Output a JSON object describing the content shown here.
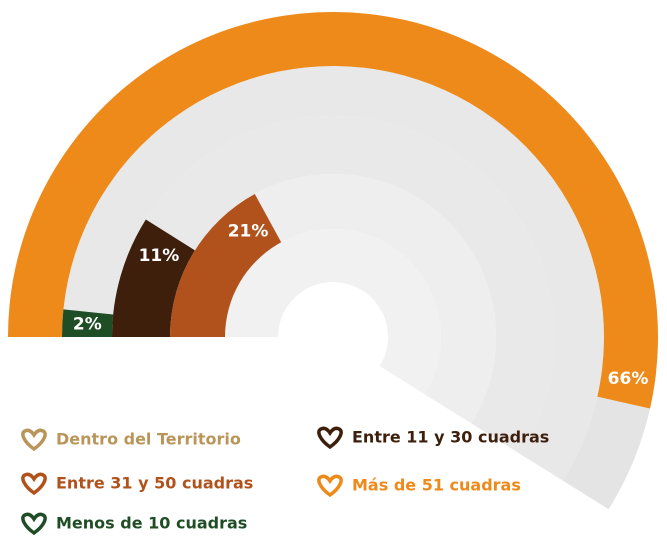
{
  "chart_data": {
    "type": "radial-bar",
    "series": [
      {
        "name": "Dentro del Territorio",
        "color": "#b9955a",
        "value": null
      },
      {
        "name": "Entre 11 y 30 cuadras",
        "color": "#3d1f0c",
        "value": 11,
        "value_label": "11%"
      },
      {
        "name": "Entre 31 y 50 cuadras",
        "color": "#b1521c",
        "value": 21,
        "value_label": "21%"
      },
      {
        "name": "Más de 51 cuadras",
        "color": "#ee8a1a",
        "value": 66,
        "value_label": "66%"
      },
      {
        "name": "Menos de 10 cuadras",
        "color": "#1f4d25",
        "value": 2,
        "value_label": "2%"
      }
    ],
    "ylim": [
      0,
      100
    ]
  }
}
